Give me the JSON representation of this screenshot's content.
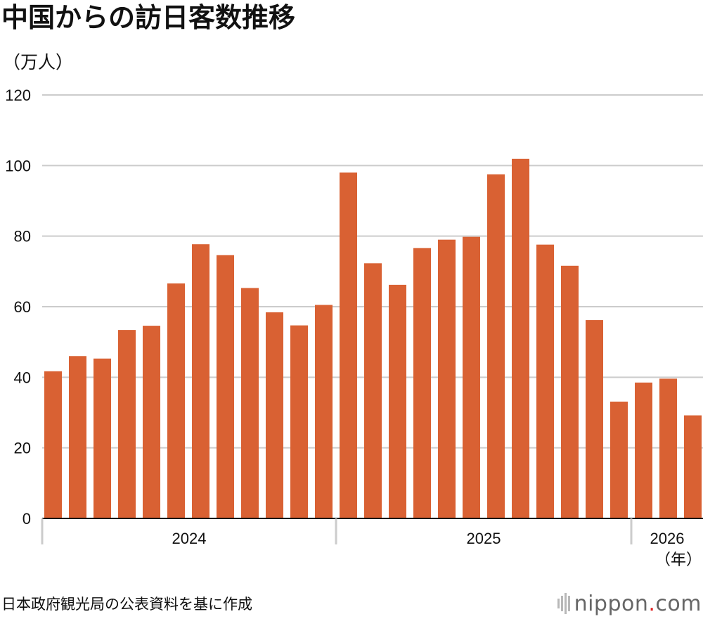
{
  "title": "中国からの訪日客数推移",
  "unit_label": "（万人）",
  "source": "日本政府観光局の公表資料を基に作成",
  "logo": {
    "left": "nippon",
    "dot": ".",
    "right": "com"
  },
  "colors": {
    "bar": "#D96133",
    "grid": "#cccccc",
    "axis": "#111111"
  },
  "chart_data": {
    "type": "bar",
    "ylim": [
      0,
      120
    ],
    "yticks": [
      "0",
      "20",
      "40",
      "60",
      "80",
      "100",
      "120"
    ],
    "values": [
      41.7,
      46.0,
      45.3,
      53.4,
      54.6,
      66.6,
      77.7,
      74.6,
      65.3,
      58.4,
      54.7,
      60.5,
      98.0,
      72.3,
      66.2,
      76.6,
      79.0,
      79.8,
      97.5,
      101.9,
      77.6,
      71.6,
      56.2,
      33.1,
      38.5,
      39.6,
      29.2
    ],
    "year_groups": [
      {
        "label": "2024",
        "months": 12
      },
      {
        "label": "2025",
        "months": 12
      },
      {
        "label": "2026",
        "months": 3
      }
    ],
    "x_unit": "（年）"
  }
}
